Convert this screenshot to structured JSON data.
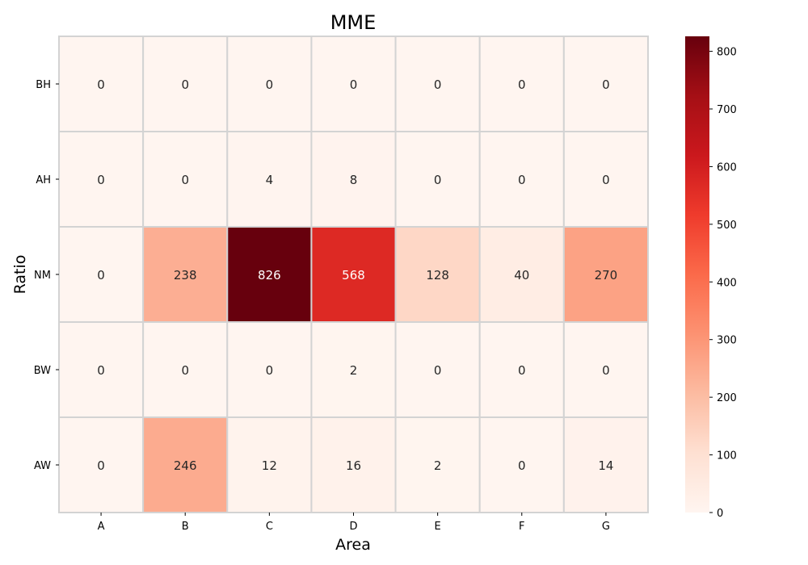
{
  "chart_data": {
    "type": "heatmap",
    "title": "MME",
    "xlabel": "Area",
    "ylabel": "Ratio",
    "x_categories": [
      "A",
      "B",
      "C",
      "D",
      "E",
      "F",
      "G"
    ],
    "y_categories": [
      "BH",
      "AH",
      "NM",
      "BW",
      "AW"
    ],
    "values": [
      [
        0,
        0,
        0,
        0,
        0,
        0,
        0
      ],
      [
        0,
        0,
        4,
        8,
        0,
        0,
        0
      ],
      [
        0,
        238,
        826,
        568,
        128,
        40,
        270
      ],
      [
        0,
        0,
        0,
        2,
        0,
        0,
        0
      ],
      [
        0,
        246,
        12,
        16,
        2,
        0,
        14
      ]
    ],
    "colorscale": "Reds",
    "vmin": 0,
    "vmax": 826,
    "colorbar_ticks": [
      0,
      100,
      200,
      300,
      400,
      500,
      600,
      700,
      800
    ],
    "annotate": true,
    "cell_border_color": "#d3d3d3"
  }
}
